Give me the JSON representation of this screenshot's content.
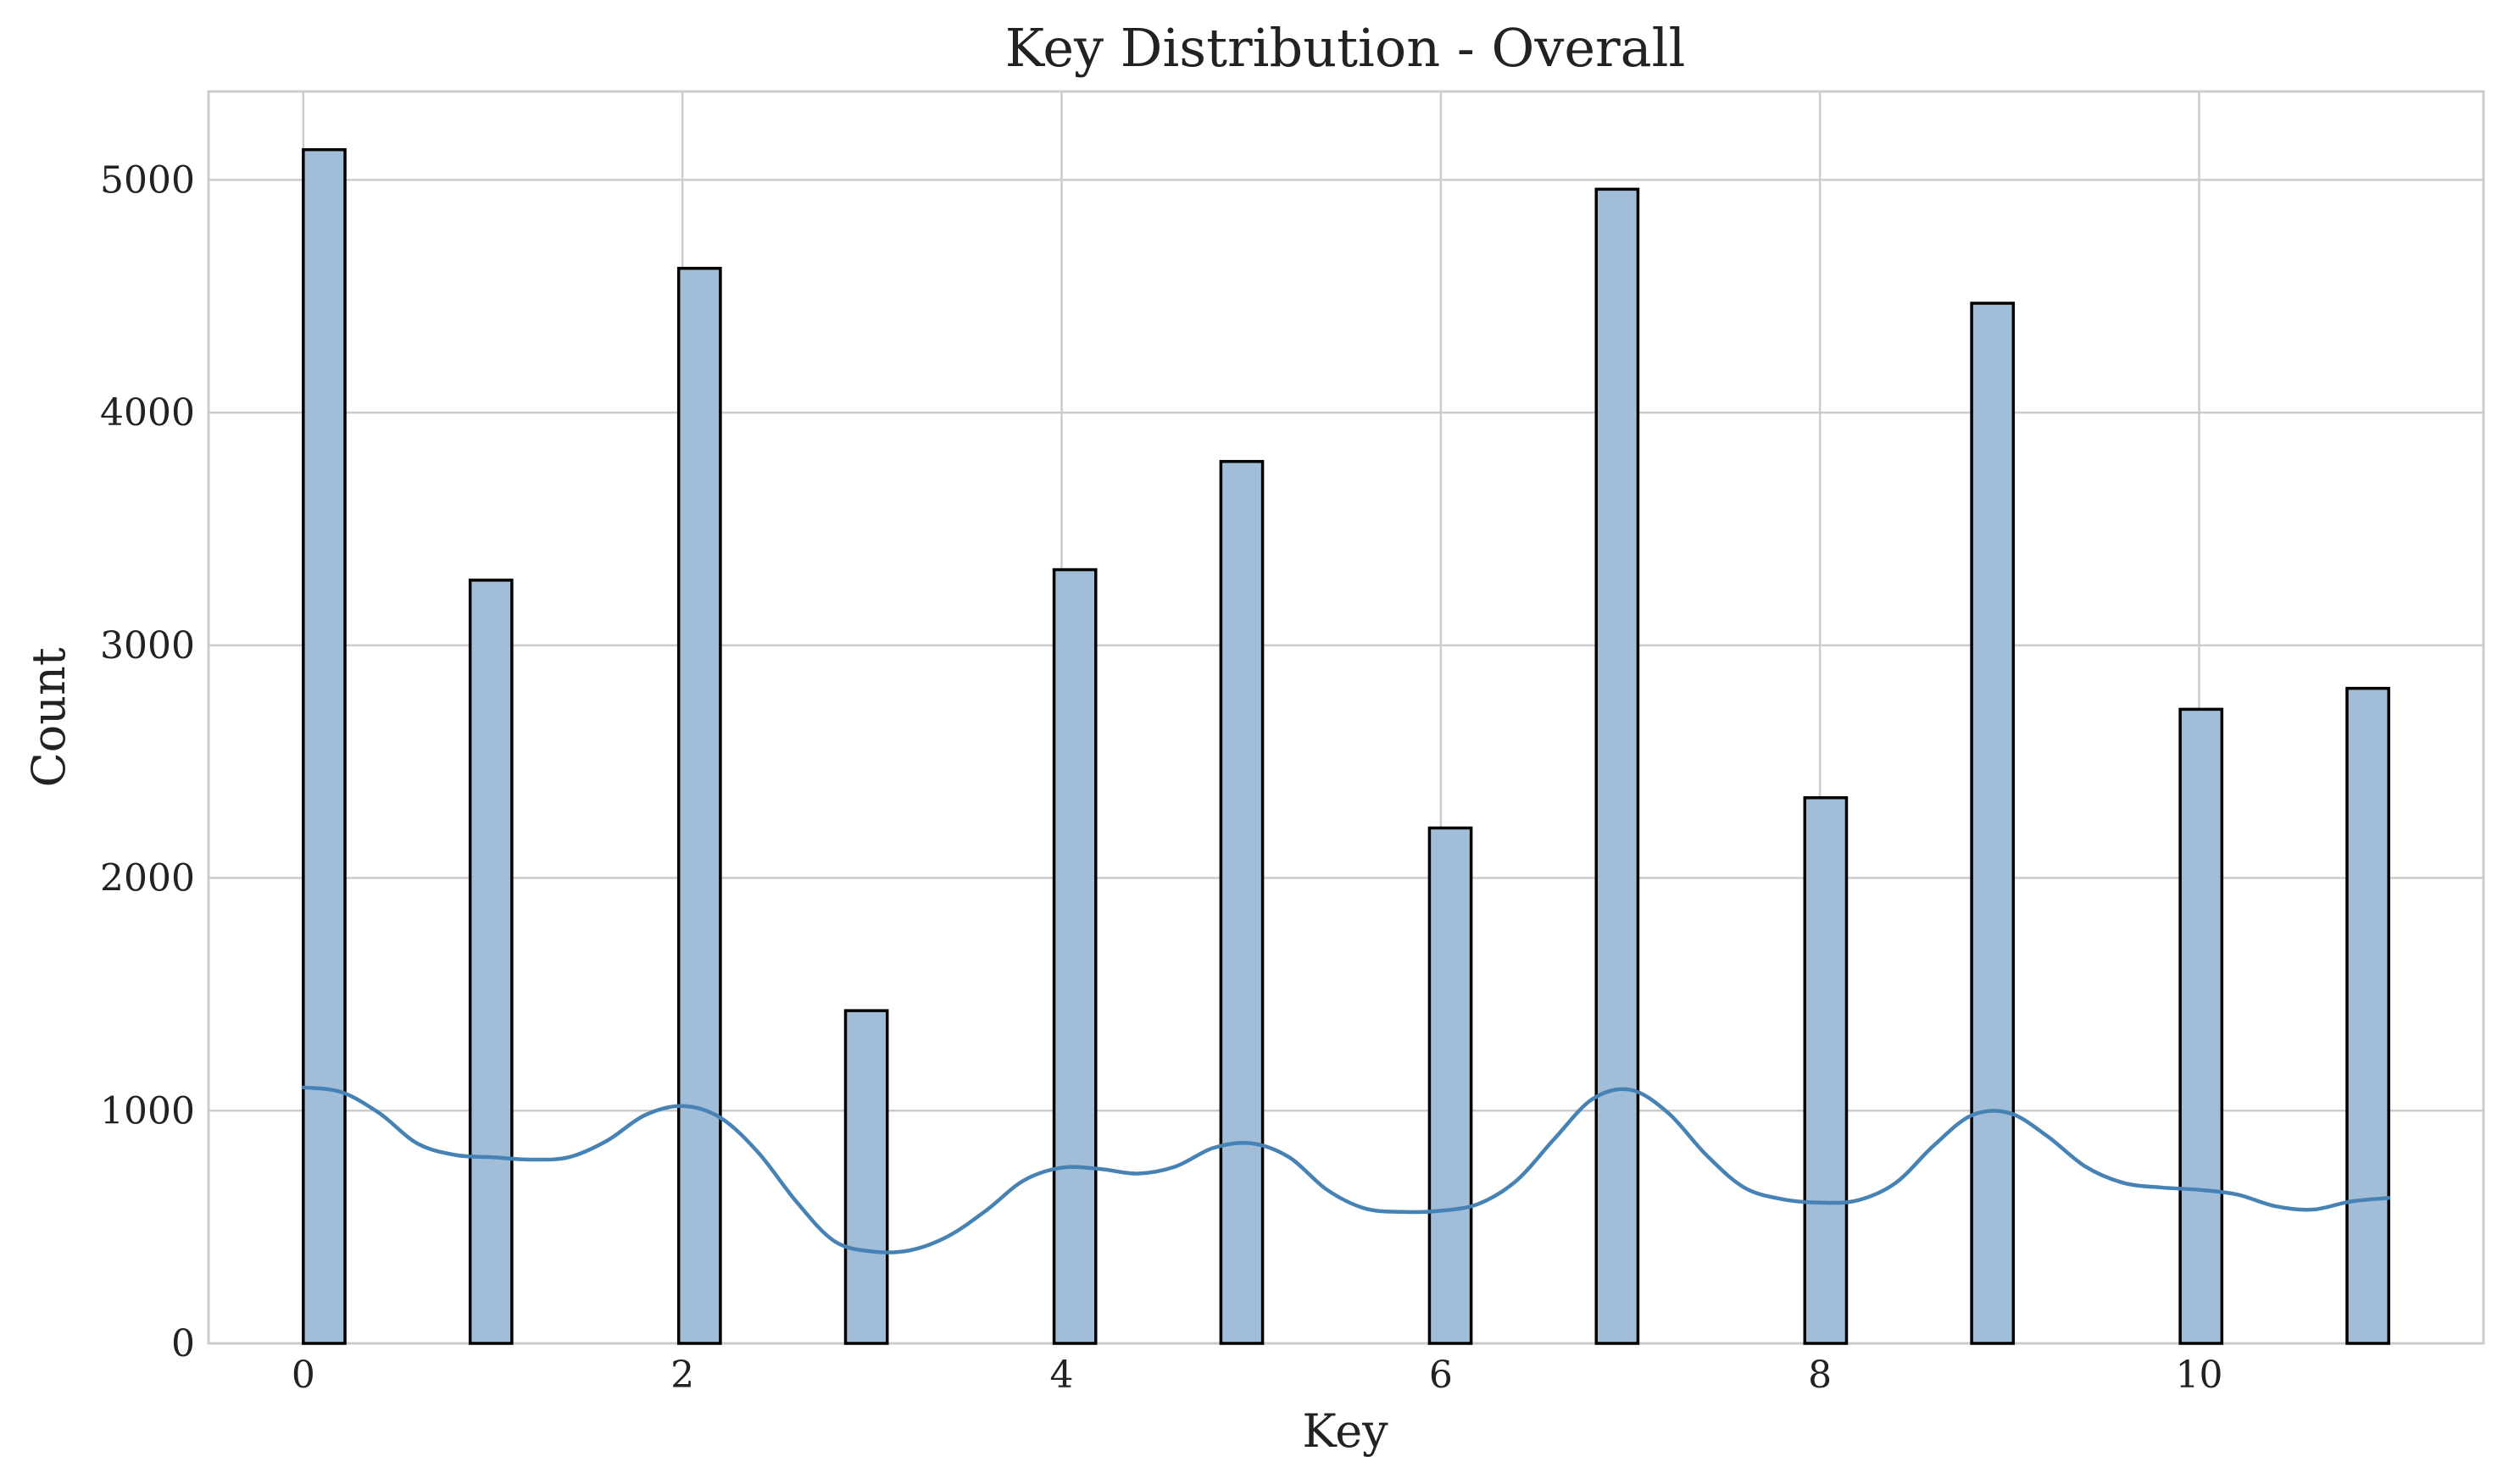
{
  "chart_data": {
    "type": "bar",
    "title": "Key Distribution - Overall",
    "xlabel": "Key",
    "ylabel": "Count",
    "xlim": [
      -0.5,
      11.5
    ],
    "ylim": [
      0,
      5380
    ],
    "xticks": [
      0,
      2,
      4,
      6,
      8,
      10
    ],
    "yticks": [
      0,
      1000,
      2000,
      3000,
      4000,
      5000
    ],
    "grid": true,
    "bar_color": "#a2bdd8",
    "bar_edge_color": "#000000",
    "kde_color": "#4682b4",
    "series": [
      {
        "kind": "histogram",
        "bin_width": 0.22,
        "bins": [
          {
            "x": 0.11,
            "count": 5130
          },
          {
            "x": 0.99,
            "count": 3280
          },
          {
            "x": 2.09,
            "count": 4620
          },
          {
            "x": 2.97,
            "count": 1430
          },
          {
            "x": 4.07,
            "count": 3325
          },
          {
            "x": 4.95,
            "count": 3790
          },
          {
            "x": 6.05,
            "count": 2215
          },
          {
            "x": 6.93,
            "count": 4960
          },
          {
            "x": 8.03,
            "count": 2345
          },
          {
            "x": 8.91,
            "count": 4470
          },
          {
            "x": 10.01,
            "count": 2725
          },
          {
            "x": 10.89,
            "count": 2815
          }
        ]
      },
      {
        "kind": "kde",
        "points": [
          [
            0.0,
            1100
          ],
          [
            0.2,
            1080
          ],
          [
            0.4,
            990
          ],
          [
            0.6,
            860
          ],
          [
            0.8,
            810
          ],
          [
            1.0,
            800
          ],
          [
            1.2,
            790
          ],
          [
            1.4,
            800
          ],
          [
            1.6,
            870
          ],
          [
            1.8,
            980
          ],
          [
            2.0,
            1020
          ],
          [
            2.2,
            970
          ],
          [
            2.4,
            820
          ],
          [
            2.6,
            610
          ],
          [
            2.8,
            440
          ],
          [
            3.0,
            395
          ],
          [
            3.2,
            400
          ],
          [
            3.4,
            460
          ],
          [
            3.6,
            570
          ],
          [
            3.8,
            700
          ],
          [
            4.0,
            755
          ],
          [
            4.2,
            750
          ],
          [
            4.4,
            730
          ],
          [
            4.6,
            760
          ],
          [
            4.8,
            840
          ],
          [
            5.0,
            860
          ],
          [
            5.2,
            800
          ],
          [
            5.4,
            660
          ],
          [
            5.6,
            580
          ],
          [
            5.8,
            565
          ],
          [
            6.0,
            570
          ],
          [
            6.2,
            600
          ],
          [
            6.4,
            700
          ],
          [
            6.6,
            880
          ],
          [
            6.8,
            1050
          ],
          [
            7.0,
            1090
          ],
          [
            7.2,
            990
          ],
          [
            7.4,
            810
          ],
          [
            7.6,
            670
          ],
          [
            7.8,
            620
          ],
          [
            8.0,
            605
          ],
          [
            8.2,
            615
          ],
          [
            8.4,
            690
          ],
          [
            8.6,
            850
          ],
          [
            8.8,
            980
          ],
          [
            9.0,
            990
          ],
          [
            9.2,
            890
          ],
          [
            9.4,
            760
          ],
          [
            9.6,
            690
          ],
          [
            9.8,
            670
          ],
          [
            10.0,
            660
          ],
          [
            10.2,
            640
          ],
          [
            10.4,
            590
          ],
          [
            10.6,
            575
          ],
          [
            10.8,
            610
          ],
          [
            11.0,
            625
          ]
        ]
      }
    ]
  }
}
